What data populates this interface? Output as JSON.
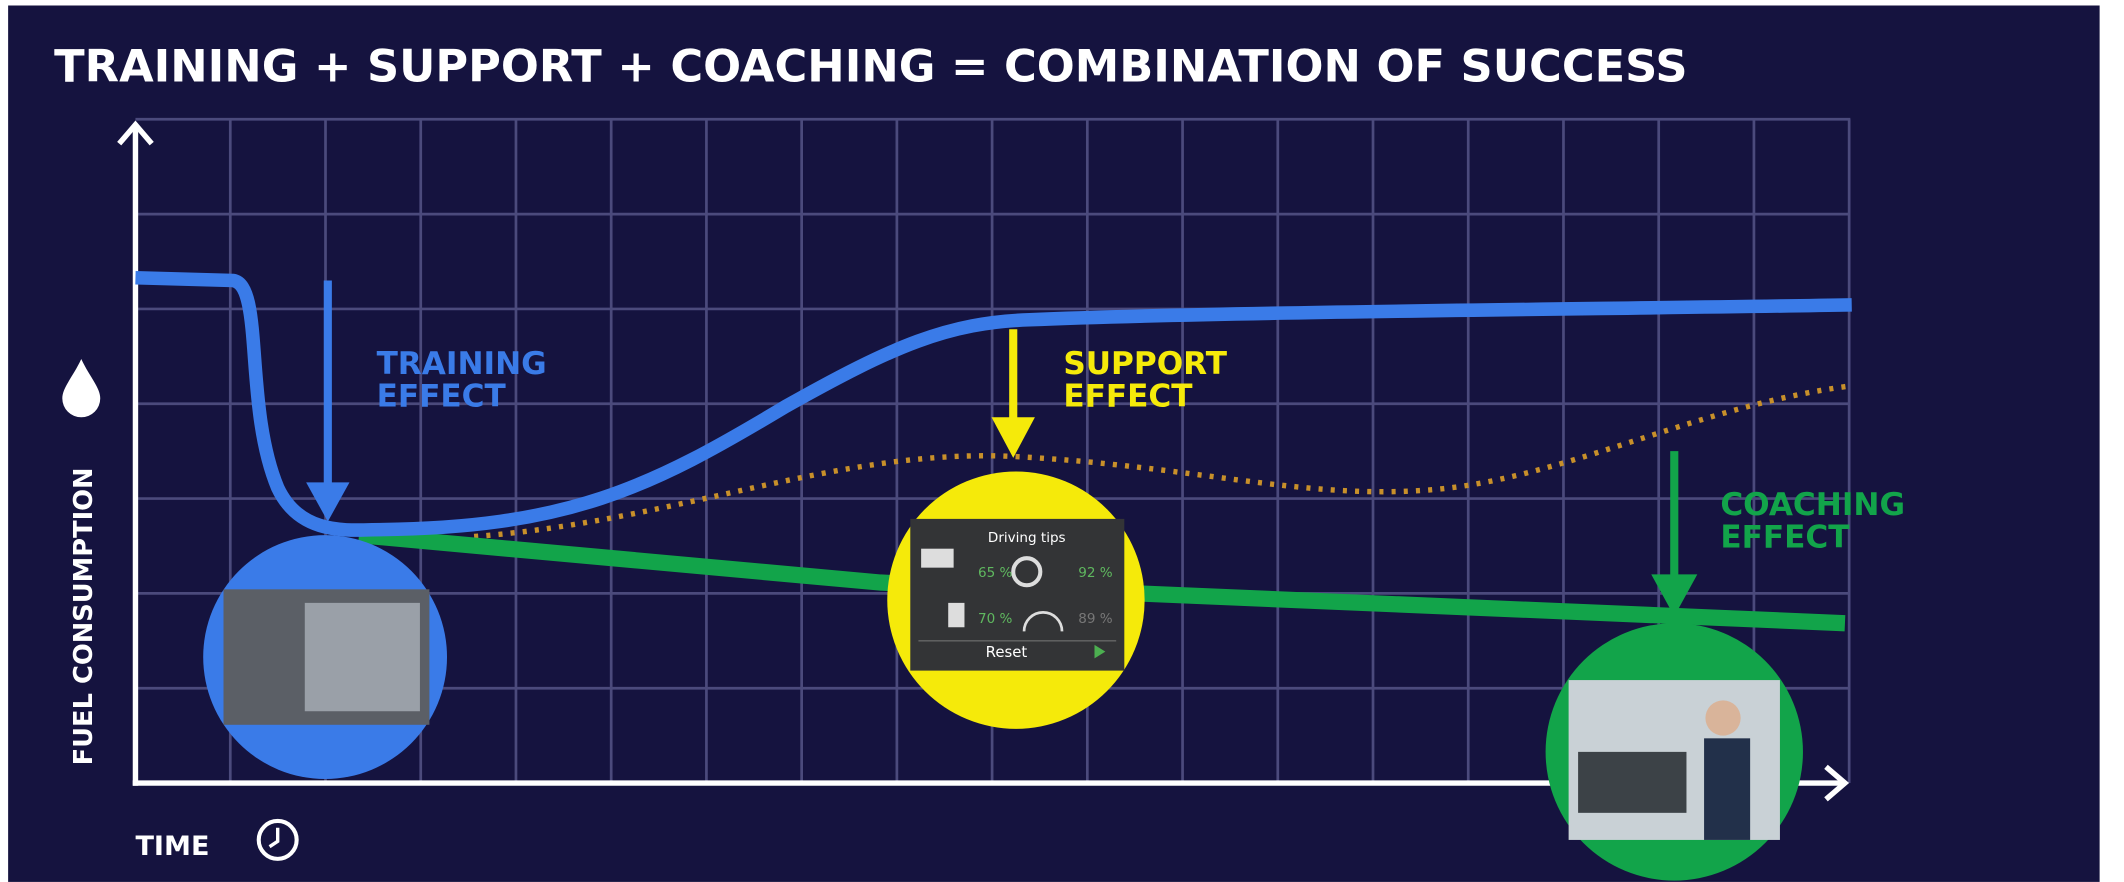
{
  "title": "TRAINING + SUPPORT + COACHING = COMBINATION OF SUCCESS",
  "y_axis_label": "FUEL CONSUMPTION",
  "x_axis_label": "TIME",
  "effects": [
    {
      "lines": [
        "TRAINING",
        "EFFECT"
      ]
    },
    {
      "lines": [
        "SUPPORT",
        "EFFECT"
      ]
    },
    {
      "lines": [
        "COACHING",
        "EFFECT"
      ]
    }
  ],
  "panel": {
    "title": "Driving tips",
    "stats": [
      "65 %",
      "92 %",
      "70 %",
      "89 %"
    ],
    "button": "Reset"
  }
}
